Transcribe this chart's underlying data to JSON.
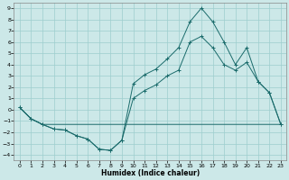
{
  "xlabel": "Humidex (Indice chaleur)",
  "bg_color": "#cce8e8",
  "grid_color": "#9ecece",
  "line_color": "#1a6b6b",
  "xlim": [
    -0.5,
    23.5
  ],
  "ylim": [
    -4.5,
    9.5
  ],
  "xticks": [
    0,
    1,
    2,
    3,
    4,
    5,
    6,
    7,
    8,
    9,
    10,
    11,
    12,
    13,
    14,
    15,
    16,
    17,
    18,
    19,
    20,
    21,
    22,
    23
  ],
  "yticks": [
    -4,
    -3,
    -2,
    -1,
    0,
    1,
    2,
    3,
    4,
    5,
    6,
    7,
    8,
    9
  ],
  "line1_x": [
    0,
    1,
    2,
    3,
    4,
    5,
    6,
    7,
    8,
    9,
    10,
    11,
    12,
    13,
    14,
    15,
    16,
    17,
    18,
    19,
    20,
    21,
    22,
    23
  ],
  "line1_y": [
    0.2,
    -0.8,
    -1.3,
    -1.7,
    -1.8,
    -2.3,
    -2.6,
    -3.5,
    -3.6,
    -2.7,
    2.3,
    3.1,
    3.6,
    4.5,
    5.5,
    7.8,
    9.0,
    7.8,
    6.0,
    4.0,
    5.5,
    2.5,
    1.5,
    -1.3
  ],
  "line2_x": [
    0,
    1,
    2,
    3,
    4,
    5,
    6,
    7,
    8,
    9,
    10,
    11,
    12,
    13,
    14,
    15,
    16,
    17,
    18,
    19,
    20,
    21,
    22,
    23
  ],
  "line2_y": [
    0.2,
    -0.8,
    -1.3,
    -1.7,
    -1.8,
    -2.3,
    -2.6,
    -3.5,
    -3.6,
    -2.7,
    1.0,
    1.7,
    2.2,
    3.0,
    3.5,
    6.0,
    6.5,
    5.5,
    4.0,
    3.5,
    4.2,
    2.5,
    1.5,
    -1.3
  ],
  "line3_x": [
    0,
    1,
    2,
    3,
    23
  ],
  "line3_y": [
    0.2,
    -0.8,
    -1.3,
    -1.3,
    -1.3
  ]
}
